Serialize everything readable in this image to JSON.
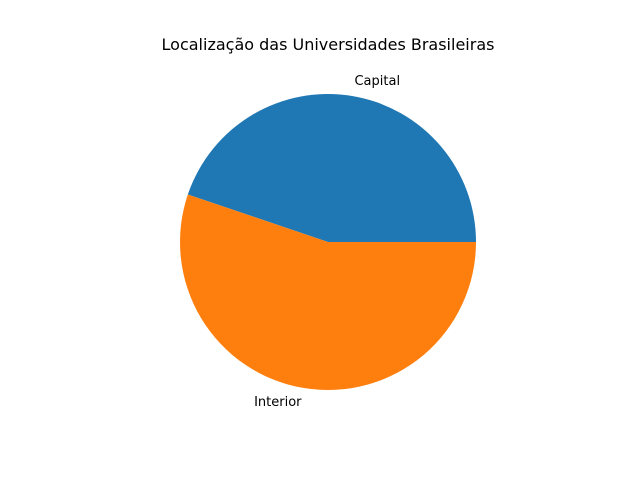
{
  "chart_data": {
    "type": "pie",
    "title": "Localização das Universidades Brasileiras",
    "categories": [
      "Capital",
      "Interior"
    ],
    "values": [
      44.8,
      55.2
    ],
    "colors": [
      "#1f77b4",
      "#ff7f0e"
    ],
    "start_angle_deg": 0,
    "direction": "counterclockwise",
    "legend": "none"
  }
}
